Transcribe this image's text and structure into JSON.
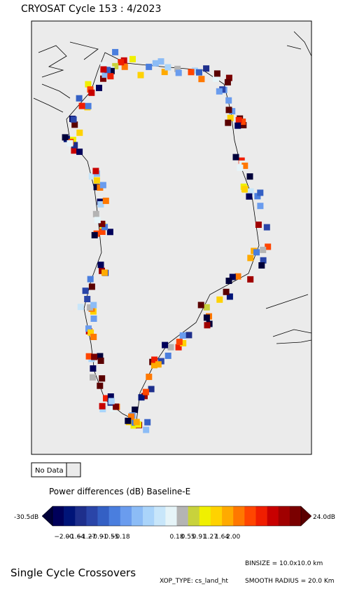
{
  "header": {
    "title": "CRYOSAT Cycle 153 : 4/2023"
  },
  "legend": {
    "no_data": "No Data"
  },
  "colorbar": {
    "title": "Power differences (dB) Baseline-E",
    "min_label": "-30.5dB",
    "max_label": "24.0dB",
    "tick_labels": [
      "−2.00",
      "−1.64",
      "−1.27",
      "−0.91",
      "−0.55",
      "−0.18",
      "0.18",
      "0.55",
      "0.91",
      "1.27",
      "1.64",
      "2.00"
    ],
    "low_color": "#00003a",
    "high_color": "#5a0000",
    "colors": [
      "#00005a",
      "#001478",
      "#1e2f8c",
      "#2a45a8",
      "#3460c4",
      "#4a7ede",
      "#6a9cee",
      "#8cbcf6",
      "#aad4fa",
      "#c8e6fa",
      "#e6f4f8",
      "#b4b4b4",
      "#c8d23c",
      "#f0f000",
      "#ffd200",
      "#ffaa00",
      "#ff7800",
      "#ff4600",
      "#f01e00",
      "#c80000",
      "#a00000",
      "#7a0000"
    ]
  },
  "footer": {
    "caption": "Single Cycle Crossovers",
    "binsize": "BINSIZE = 10.0x10.0 km",
    "xop_type": "XOP_TYPE: cs_land_ht",
    "smooth_radius": "SMOOTH RADIUS =  20.0 Km"
  }
}
